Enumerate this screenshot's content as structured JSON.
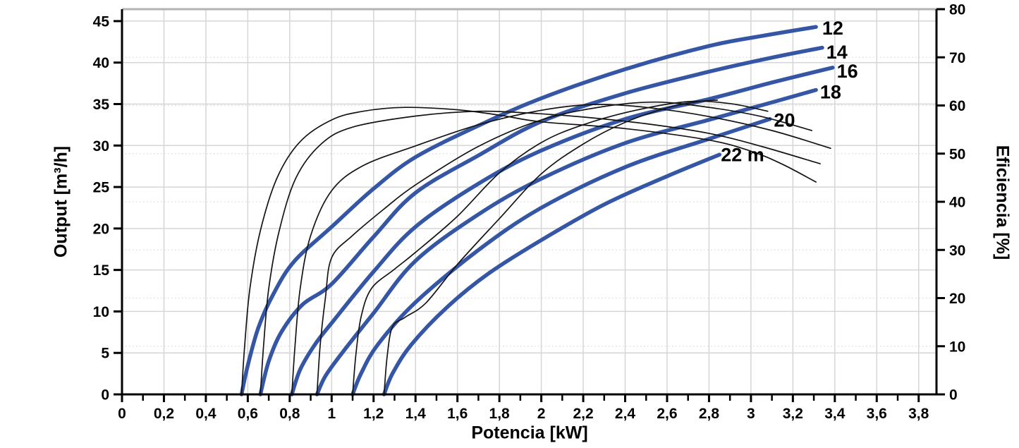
{
  "chart_data": {
    "type": "line",
    "title": "",
    "xlabel": "Potencia [kW]",
    "ylabel_left": "Output [m³/h]",
    "ylabel_right": "Eficiencia [%]",
    "xlim": [
      0,
      3.885
    ],
    "ylim_left": [
      0,
      46.44
    ],
    "ylim_right": [
      0,
      80
    ],
    "grid": "on",
    "legend_position": "end-of-line labels",
    "x_ticks": {
      "values": [
        0,
        0.2,
        0.4,
        0.6,
        0.8,
        1,
        1.2,
        1.4,
        1.6,
        1.8,
        2,
        2.2,
        2.4,
        2.6,
        2.8,
        3,
        3.2,
        3.4,
        3.6,
        3.8
      ],
      "labels": [
        "0",
        "0,2",
        "0,4",
        "0,6",
        "0,8",
        "1",
        "1,2",
        "1,4",
        "1,6",
        "1,8",
        "2",
        "2,2",
        "2,4",
        "2,6",
        "2,8",
        "3",
        "3,2",
        "3,4",
        "3,6",
        "3,8"
      ],
      "minor_step": 0.1
    },
    "y_left_ticks": {
      "values": [
        0,
        5,
        10,
        15,
        20,
        25,
        30,
        35,
        40,
        45
      ],
      "labels": [
        "0",
        "5",
        "10",
        "15",
        "20",
        "25",
        "30",
        "35",
        "40",
        "45"
      ]
    },
    "y_right_ticks": {
      "values": [
        0,
        10,
        20,
        30,
        40,
        50,
        60,
        70,
        80
      ],
      "labels": [
        "0",
        "10",
        "20",
        "30",
        "40",
        "50",
        "60",
        "70",
        "80"
      ]
    },
    "colors": {
      "power_curve": "#3456a5",
      "efficiency_curve": "#141414",
      "axis": "#000000",
      "grid": "#d6d6d6",
      "grid_dotted": "#d9d9d9",
      "frame_top": "#b3b3b3"
    },
    "power_curves": [
      {
        "head": "12",
        "label": "12",
        "label_pos": [
          3.39,
          44.2
        ],
        "points": [
          [
            0.57,
            0
          ],
          [
            0.6,
            3.5
          ],
          [
            0.65,
            8
          ],
          [
            0.72,
            12
          ],
          [
            0.82,
            16
          ],
          [
            1.0,
            20.2
          ],
          [
            1.2,
            24.8
          ],
          [
            1.4,
            28.6
          ],
          [
            1.7,
            32.4
          ],
          [
            2.0,
            35.7
          ],
          [
            2.4,
            39.2
          ],
          [
            2.8,
            42.0
          ],
          [
            3.05,
            43.2
          ],
          [
            3.31,
            44.3
          ]
        ]
      },
      {
        "head": "14",
        "label": "14",
        "label_pos": [
          3.41,
          41.3
        ],
        "points": [
          [
            0.66,
            0
          ],
          [
            0.7,
            4
          ],
          [
            0.76,
            7.5
          ],
          [
            0.86,
            10.8
          ],
          [
            1.0,
            13.3
          ],
          [
            1.2,
            19
          ],
          [
            1.4,
            24.3
          ],
          [
            1.7,
            28.8
          ],
          [
            2.0,
            32.9
          ],
          [
            2.4,
            36.3
          ],
          [
            2.8,
            38.9
          ],
          [
            3.1,
            40.6
          ],
          [
            3.34,
            41.8
          ]
        ]
      },
      {
        "head": "16",
        "label": "16",
        "label_pos": [
          3.46,
          39.0
        ],
        "points": [
          [
            0.81,
            0
          ],
          [
            0.85,
            3
          ],
          [
            0.92,
            6
          ],
          [
            1.0,
            8.6
          ],
          [
            1.2,
            14.8
          ],
          [
            1.4,
            20.2
          ],
          [
            1.7,
            25.4
          ],
          [
            2.0,
            29.4
          ],
          [
            2.4,
            33.2
          ],
          [
            2.8,
            35.6
          ],
          [
            3.1,
            37.6
          ],
          [
            3.39,
            39.4
          ]
        ]
      },
      {
        "head": "18",
        "label": "18",
        "label_pos": [
          3.38,
          36.5
        ],
        "points": [
          [
            0.93,
            0
          ],
          [
            0.97,
            2.2
          ],
          [
            1.05,
            5
          ],
          [
            1.2,
            9.8
          ],
          [
            1.4,
            16.1
          ],
          [
            1.7,
            21.7
          ],
          [
            2.0,
            26.0
          ],
          [
            2.4,
            30.3
          ],
          [
            2.8,
            33.1
          ],
          [
            3.1,
            35.2
          ],
          [
            3.31,
            36.7
          ]
        ]
      },
      {
        "head": "20",
        "label": "20",
        "label_pos": [
          3.16,
          33.1
        ],
        "points": [
          [
            1.1,
            0
          ],
          [
            1.14,
            2.5
          ],
          [
            1.22,
            6
          ],
          [
            1.4,
            11.1
          ],
          [
            1.7,
            17.4
          ],
          [
            2.0,
            22.5
          ],
          [
            2.4,
            27.4
          ],
          [
            2.8,
            30.8
          ],
          [
            3.09,
            33.2
          ]
        ]
      },
      {
        "head": "22",
        "label": "22 m",
        "label_pos": [
          2.96,
          28.9
        ],
        "points": [
          [
            1.25,
            0
          ],
          [
            1.29,
            2.5
          ],
          [
            1.38,
            6
          ],
          [
            1.55,
            10.5
          ],
          [
            1.75,
            14.6
          ],
          [
            2.0,
            18.6
          ],
          [
            2.3,
            22.9
          ],
          [
            2.6,
            26.3
          ],
          [
            2.85,
            28.9
          ]
        ]
      }
    ],
    "efficiency_curves": [
      {
        "head": "12",
        "points": [
          [
            0.57,
            0
          ],
          [
            0.585,
            10
          ],
          [
            0.61,
            22
          ],
          [
            0.66,
            34
          ],
          [
            0.74,
            45
          ],
          [
            0.85,
            52.5
          ],
          [
            1.0,
            57
          ],
          [
            1.15,
            58.8
          ],
          [
            1.35,
            59.6
          ],
          [
            1.6,
            59.1
          ],
          [
            1.8,
            58
          ],
          [
            2.0,
            56.6
          ],
          [
            2.4,
            55.2
          ],
          [
            2.8,
            52.8
          ],
          [
            3.0,
            50.5
          ],
          [
            3.15,
            47.8
          ],
          [
            3.31,
            44.1
          ]
        ]
      },
      {
        "head": "14",
        "points": [
          [
            0.66,
            0
          ],
          [
            0.675,
            10
          ],
          [
            0.7,
            22
          ],
          [
            0.75,
            34
          ],
          [
            0.83,
            45
          ],
          [
            0.95,
            52
          ],
          [
            1.1,
            55.5
          ],
          [
            1.4,
            57.8
          ],
          [
            1.7,
            58.8
          ],
          [
            1.95,
            58.4
          ],
          [
            2.2,
            57.6
          ],
          [
            2.5,
            56.2
          ],
          [
            2.8,
            54.2
          ],
          [
            3.05,
            51.5
          ],
          [
            3.33,
            47.9
          ]
        ]
      },
      {
        "head": "16",
        "points": [
          [
            0.81,
            0
          ],
          [
            0.825,
            10
          ],
          [
            0.85,
            22
          ],
          [
            0.9,
            33
          ],
          [
            1.0,
            42.3
          ],
          [
            1.15,
            47.5
          ],
          [
            1.4,
            51.6
          ],
          [
            1.7,
            56
          ],
          [
            2.0,
            59
          ],
          [
            2.25,
            60.2
          ],
          [
            2.5,
            59.6
          ],
          [
            2.8,
            57.7
          ],
          [
            3.1,
            54.8
          ],
          [
            3.38,
            51.1
          ]
        ]
      },
      {
        "head": "18",
        "points": [
          [
            0.93,
            0
          ],
          [
            0.945,
            10
          ],
          [
            0.97,
            20
          ],
          [
            1.0,
            28.4
          ],
          [
            1.1,
            33
          ],
          [
            1.25,
            38.5
          ],
          [
            1.4,
            43.5
          ],
          [
            1.7,
            51.5
          ],
          [
            2.0,
            57
          ],
          [
            2.3,
            59.8
          ],
          [
            2.55,
            60.7
          ],
          [
            2.8,
            59.6
          ],
          [
            3.05,
            57.7
          ],
          [
            3.29,
            54.8
          ]
        ]
      },
      {
        "head": "20",
        "points": [
          [
            1.1,
            0
          ],
          [
            1.115,
            8
          ],
          [
            1.14,
            16
          ],
          [
            1.19,
            22
          ],
          [
            1.3,
            26
          ],
          [
            1.4,
            29.5
          ],
          [
            1.6,
            37
          ],
          [
            1.8,
            46
          ],
          [
            2.0,
            52.3
          ],
          [
            2.2,
            56
          ],
          [
            2.45,
            59
          ],
          [
            2.7,
            60.8
          ],
          [
            2.9,
            60.4
          ],
          [
            3.08,
            58.8
          ]
        ]
      },
      {
        "head": "22",
        "points": [
          [
            1.25,
            0
          ],
          [
            1.265,
            8
          ],
          [
            1.29,
            14
          ],
          [
            1.35,
            16
          ],
          [
            1.45,
            19
          ],
          [
            1.6,
            27
          ],
          [
            1.8,
            36.5
          ],
          [
            2.0,
            45.8
          ],
          [
            2.2,
            52
          ],
          [
            2.4,
            56.5
          ],
          [
            2.6,
            59.5
          ],
          [
            2.75,
            60.8
          ],
          [
            2.84,
            61.1
          ]
        ]
      }
    ]
  }
}
